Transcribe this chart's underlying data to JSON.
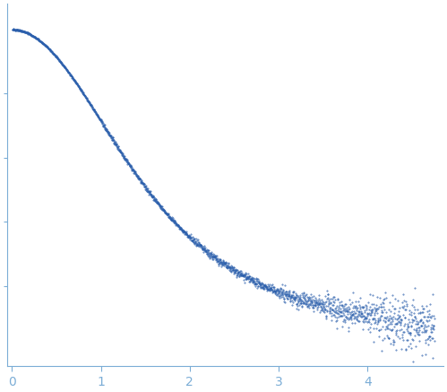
{
  "xlim": [
    -0.05,
    4.85
  ],
  "ylim": [
    -0.05,
    1.08
  ],
  "x_ticks": [
    0,
    1,
    2,
    3,
    4
  ],
  "background_color": "#ffffff",
  "scatter_color": "#2b5fac",
  "spine_color": "#7badd6",
  "tick_color": "#7badd6",
  "label_color": "#7badd6",
  "Rg": 1.05,
  "q_max": 4.75,
  "q_points": 2000
}
